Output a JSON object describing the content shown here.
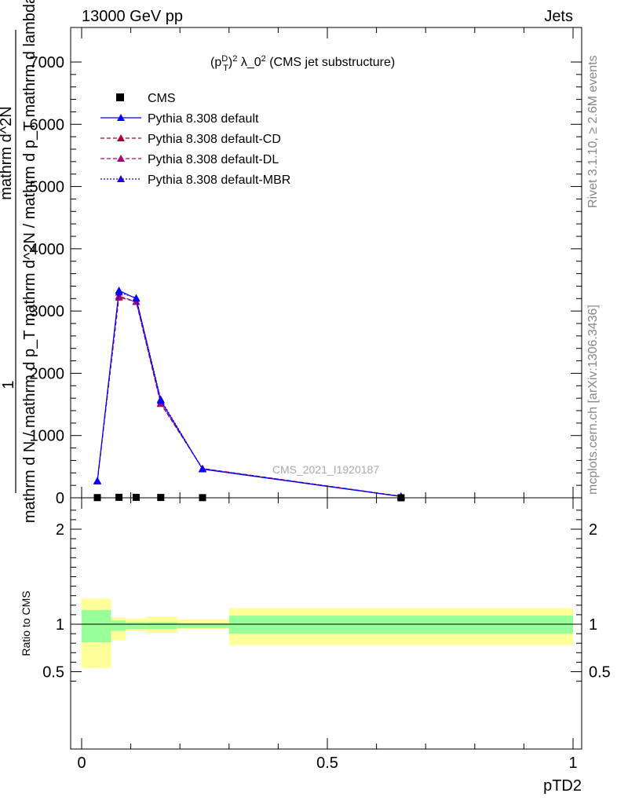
{
  "header": {
    "left": "13000 GeV pp",
    "right": "Jets"
  },
  "side_labels": {
    "rivet": "Rivet 3.1.10, ≥ 2.6M events",
    "mcplots": "mcplots.cern.ch [arXiv:1306.3436]"
  },
  "plot_title": "(p_T^D)^2 λ_0^2 (CMS jet substructure)",
  "watermark": "CMS_2021_I1920187",
  "colors": {
    "data": "#000000",
    "default": "#0000ff",
    "cd": "#aa0033",
    "dl": "#aa0077",
    "mbr": "#2200cc",
    "band_inner": "#99ff99",
    "band_outer": "#ffff99"
  },
  "chart_data": [
    {
      "type": "line",
      "xlabel": "pTD2",
      "ylabel": "1 / mathrm d N / mathrm d p_T mathrm d^2N / mathrm d p_T mathrm d lambda",
      "xlim": [
        -0.02,
        1.02
      ],
      "ylim": [
        0,
        7500
      ],
      "yticks": [
        0,
        1000,
        2000,
        3000,
        4000,
        5000,
        6000,
        7000
      ],
      "yticklabels": [
        "0",
        "1000",
        "2000",
        "3000",
        "4000",
        "5000",
        "6000",
        "7000"
      ],
      "x": [
        0.032,
        0.076,
        0.111,
        0.161,
        0.246,
        0.65
      ],
      "series": [
        {
          "name": "CMS",
          "key": "data",
          "values": [
            3.1,
            7.5,
            7.2,
            5.2,
            2.3,
            0.17
          ]
        },
        {
          "name": "Pythia 8.308 default",
          "key": "default",
          "values": [
            270,
            3330,
            3200,
            1560,
            460,
            20
          ]
        },
        {
          "name": "Pythia 8.308 default-CD",
          "key": "cd",
          "values": [
            265,
            3220,
            3150,
            1510,
            470,
            25
          ]
        },
        {
          "name": "Pythia 8.308 default-DL",
          "key": "dl",
          "values": [
            265,
            3240,
            3150,
            1520,
            470,
            25
          ]
        },
        {
          "name": "Pythia 8.308 default-MBR",
          "key": "mbr",
          "values": [
            275,
            3300,
            3210,
            1580,
            460,
            22
          ]
        }
      ],
      "legend_placement": "top-left"
    },
    {
      "type": "area",
      "xlabel": "pTD2",
      "ylabel": "Ratio to CMS",
      "xlim": [
        -0.02,
        1.02
      ],
      "ylim": [
        0.35,
        2.25
      ],
      "yticks": [
        0.5,
        1,
        2
      ],
      "yticklabels": [
        "0.5",
        "1",
        "2"
      ],
      "xticks": [
        0,
        0.5,
        1
      ],
      "xticklabels": [
        "0",
        "0.5",
        "1"
      ],
      "bins": [
        {
          "lo": 0.0,
          "hi": 0.06,
          "inner": [
            0.81,
            1.15
          ],
          "outer": [
            0.54,
            1.27
          ]
        },
        {
          "lo": 0.06,
          "hi": 0.09,
          "inner": [
            0.93,
            1.04
          ],
          "outer": [
            0.83,
            1.07
          ]
        },
        {
          "lo": 0.09,
          "hi": 0.13,
          "inner": [
            0.95,
            1.02
          ],
          "outer": [
            0.93,
            1.06
          ]
        },
        {
          "lo": 0.13,
          "hi": 0.195,
          "inner": [
            0.95,
            1.02
          ],
          "outer": [
            0.91,
            1.08
          ]
        },
        {
          "lo": 0.195,
          "hi": 0.3,
          "inner": [
            0.96,
            1.01
          ],
          "outer": [
            0.95,
            1.05
          ]
        },
        {
          "lo": 0.3,
          "hi": 1.0,
          "inner": [
            0.9,
            1.09
          ],
          "outer": [
            0.78,
            1.17
          ]
        }
      ]
    }
  ]
}
